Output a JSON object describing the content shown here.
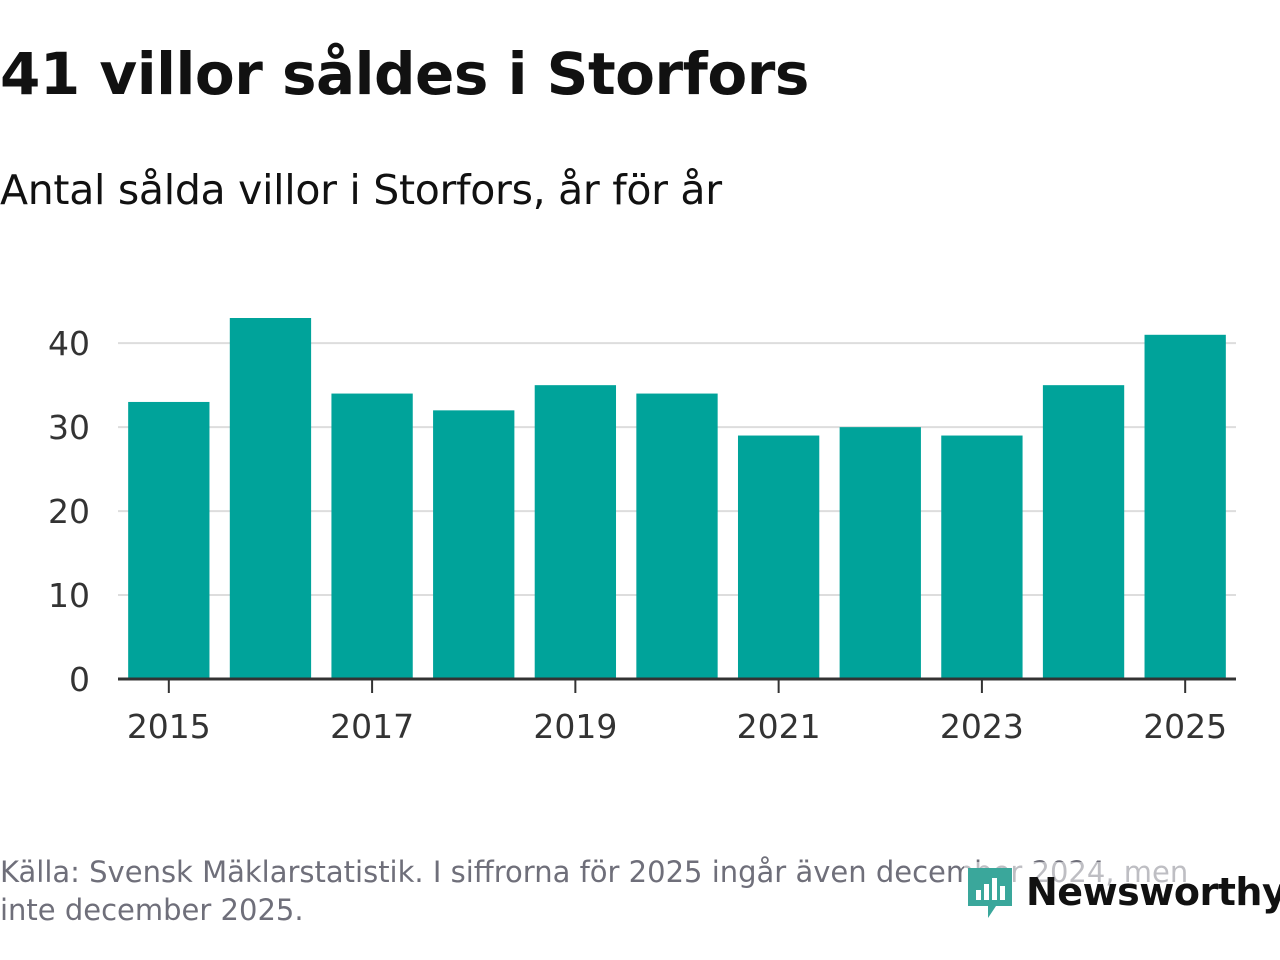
{
  "header": {
    "title": "41 villor såldes i Storfors",
    "subtitle": "Antal sålda villor i Storfors, år för år"
  },
  "footer": {
    "note": "Källa: Svensk Mäklarstatistik. I siffrorna för 2025 ingår även december 2024, men inte december 2025.",
    "brand": "Newsworthy",
    "brand_icon": "newsworthy-logo-icon"
  },
  "colors": {
    "bar": "#00a39a",
    "gridline": "#dddddd",
    "axis": "#333333",
    "brand": "#3aa79b",
    "note": "#6f6f7a"
  },
  "chart_data": {
    "type": "bar",
    "title": "41 villor såldes i Storfors",
    "subtitle": "Antal sålda villor i Storfors, år för år",
    "categories": [
      "2015",
      "2016",
      "2017",
      "2018",
      "2019",
      "2020",
      "2021",
      "2022",
      "2023",
      "2024",
      "2025"
    ],
    "values": [
      33,
      43,
      34,
      32,
      35,
      34,
      29,
      30,
      29,
      35,
      41
    ],
    "x_tick_labels": [
      "2015",
      "2017",
      "2019",
      "2021",
      "2023",
      "2025"
    ],
    "y_ticks": [
      0,
      10,
      20,
      30,
      40
    ],
    "ylim": [
      0,
      43
    ],
    "xlabel": "",
    "ylabel": "",
    "grid": true
  }
}
